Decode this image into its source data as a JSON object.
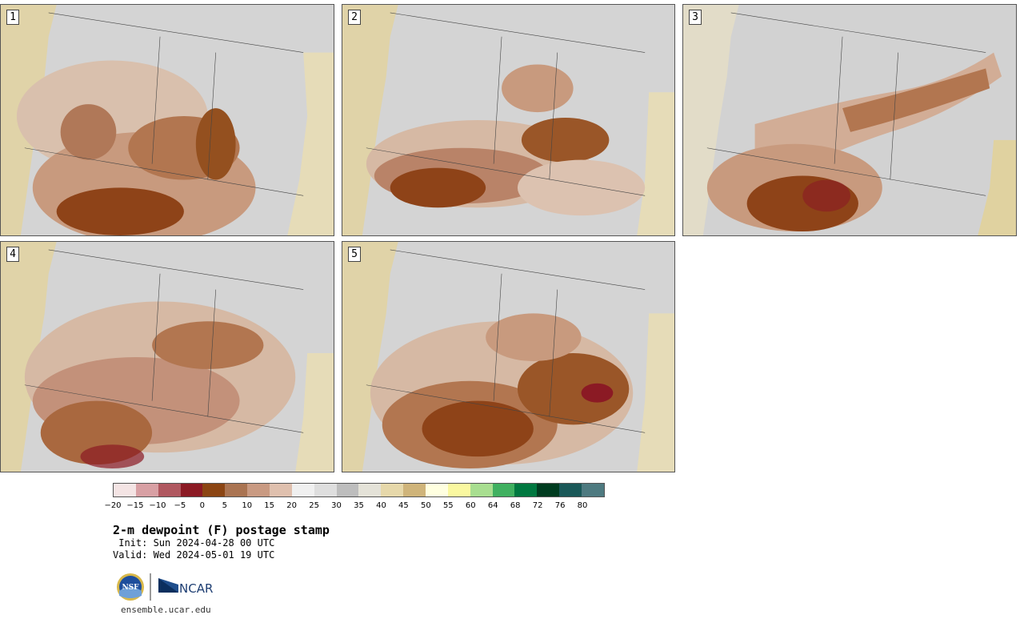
{
  "panels": [
    {
      "label": "1"
    },
    {
      "label": "2"
    },
    {
      "label": "3"
    },
    {
      "label": "4"
    },
    {
      "label": "5"
    }
  ],
  "colorbar": {
    "colors": [
      "#f4e4e4",
      "#d8a0a4",
      "#b05860",
      "#8b1a24",
      "#8b4513",
      "#aa7452",
      "#c99a82",
      "#dfc0ae",
      "#f0f0f0",
      "#dedede",
      "#bdbdbd",
      "#e4e2d8",
      "#e6d8aa",
      "#cfb47a",
      "#ffffe0",
      "#faf8a0",
      "#a8de90",
      "#40b060",
      "#007840",
      "#003c20",
      "#1a5858",
      "#4e7a80"
    ],
    "tick_labels": [
      "−20",
      "−15",
      "−10",
      "−5",
      "0",
      "5",
      "10",
      "15",
      "20",
      "25",
      "30",
      "35",
      "40",
      "45",
      "50",
      "55",
      "60",
      "64",
      "68",
      "72",
      "76",
      "80"
    ]
  },
  "title": "2-m dewpoint (F) postage stamp",
  "init": " Init: Sun 2024-04-28 00 UTC",
  "valid": "Valid: Wed 2024-05-01 19 UTC",
  "logos": {
    "nsf": "NSF",
    "ncar": "NCAR"
  },
  "site": "ensemble.ucar.edu"
}
